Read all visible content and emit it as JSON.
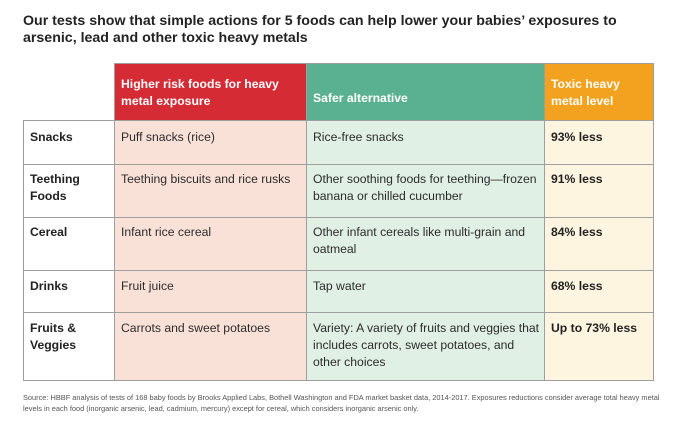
{
  "title": "Our tests show that simple actions for 5 foods can help lower your babies’ exposures to arsenic, lead and other toxic heavy metals",
  "headers": {
    "risk": "Higher risk foods for heavy metal exposure",
    "safer": "Safer alternative",
    "level": "Toxic heavy metal level"
  },
  "colors": {
    "risk_header": "#d42b34",
    "safer_header": "#5ab191",
    "level_header": "#f3a21f",
    "risk_cell": "#fae1d8",
    "safer_cell": "#e0f0e4",
    "level_cell": "#fdf5e0"
  },
  "rows": [
    {
      "food": "Snacks",
      "risk": "Puff snacks (rice)",
      "safer": "Rice-free snacks",
      "level": "93% less"
    },
    {
      "food": "Teething Foods",
      "risk": "Teething biscuits and rice rusks",
      "safer": "Other soothing foods for teething—frozen banana or chilled cucumber",
      "level": "91% less"
    },
    {
      "food": "Cereal",
      "risk": "Infant rice cereal",
      "safer": "Other infant cereals like multi-grain and oatmeal",
      "level": "84% less"
    },
    {
      "food": "Drinks",
      "risk": "Fruit juice",
      "safer": "Tap water",
      "level": "68% less"
    },
    {
      "food": "Fruits & Veggies",
      "risk": "Carrots and sweet potatoes",
      "safer": "Variety: A variety of fruits and veggies that includes carrots, sweet potatoes, and other choices",
      "level": "Up to 73% less"
    }
  ],
  "source": "Source: HBBF analysis of tests of 168 baby foods by Brooks Applied Labs, Bothell Washington and FDA market basket data, 2014-2017. Exposures reductions consider average total heavy metal levels in each food (inorganic arsenic, lead, cadmium, mercury) except for cereal, which considers inorganic arsenic only."
}
